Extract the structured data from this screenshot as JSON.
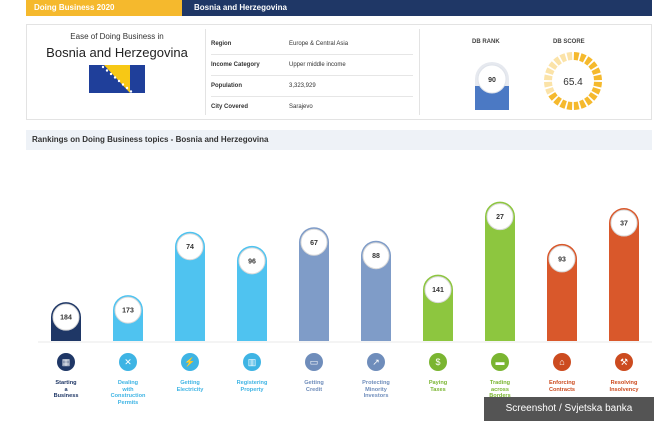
{
  "header": {
    "left_title": "Doing Business 2020",
    "right_title": "Bosnia and Herzegovina"
  },
  "summary": {
    "ease_title": "Ease of Doing Business in",
    "country": "Bosnia and Herzegovina",
    "rows": [
      {
        "label": "Region",
        "value": "Europe & Central Asia"
      },
      {
        "label": "Income Category",
        "value": "Upper middle income"
      },
      {
        "label": "Population",
        "value": "3,323,929"
      },
      {
        "label": "City Covered",
        "value": "Sarajevo"
      }
    ],
    "db_rank_label": "DB RANK",
    "db_rank": "90",
    "db_score_label": "DB SCORE",
    "db_score": "65.4"
  },
  "section_title": "Rankings on Doing Business topics - Bosnia and Herzegovina",
  "chart_data": {
    "type": "bar",
    "categories": [
      "Starting a Business",
      "Dealing with Construction Permits",
      "Getting Electricity",
      "Registering Property",
      "Getting Credit",
      "Protecting Minority Investors",
      "Paying Taxes",
      "Trading across Borders",
      "Enforcing Contracts",
      "Resolving Insolvency"
    ],
    "label_lines": [
      [
        "Starting",
        "a",
        "Business"
      ],
      [
        "Dealing",
        "with",
        "Construction",
        "Permits"
      ],
      [
        "Getting",
        "Electricity"
      ],
      [
        "Registering",
        "Property"
      ],
      [
        "Getting",
        "Credit"
      ],
      [
        "Protecting",
        "Minority",
        "Investors"
      ],
      [
        "Paying",
        "Taxes"
      ],
      [
        "Trading",
        "across",
        "Borders"
      ],
      [
        "Enforcing",
        "Contracts"
      ],
      [
        "Resolving",
        "Insolvency"
      ]
    ],
    "values": [
      184,
      173,
      74,
      96,
      67,
      88,
      141,
      27,
      93,
      37
    ],
    "colors": [
      "#1f3766",
      "#4fc3f0",
      "#4fc3f0",
      "#4fc3f0",
      "#7f9cc8",
      "#7f9cc8",
      "#8dc63f",
      "#8dc63f",
      "#d9582b",
      "#d9582b"
    ],
    "label_colors": [
      "#1f3766",
      "#3eb4e4",
      "#3eb4e4",
      "#3eb4e4",
      "#6f8dbb",
      "#6f8dbb",
      "#7ab531",
      "#7ab531",
      "#cc4b1f",
      "#cc4b1f"
    ],
    "icons": [
      "building-icon",
      "tools-icon",
      "lightning-icon",
      "buildings-icon",
      "card-icon",
      "chart-trend-icon",
      "money-icon",
      "truck-icon",
      "courthouse-icon",
      "gavel-icon"
    ],
    "title": "",
    "xlabel": "",
    "ylabel": ""
  },
  "watermark": "Screenshot / Svjetska banka"
}
